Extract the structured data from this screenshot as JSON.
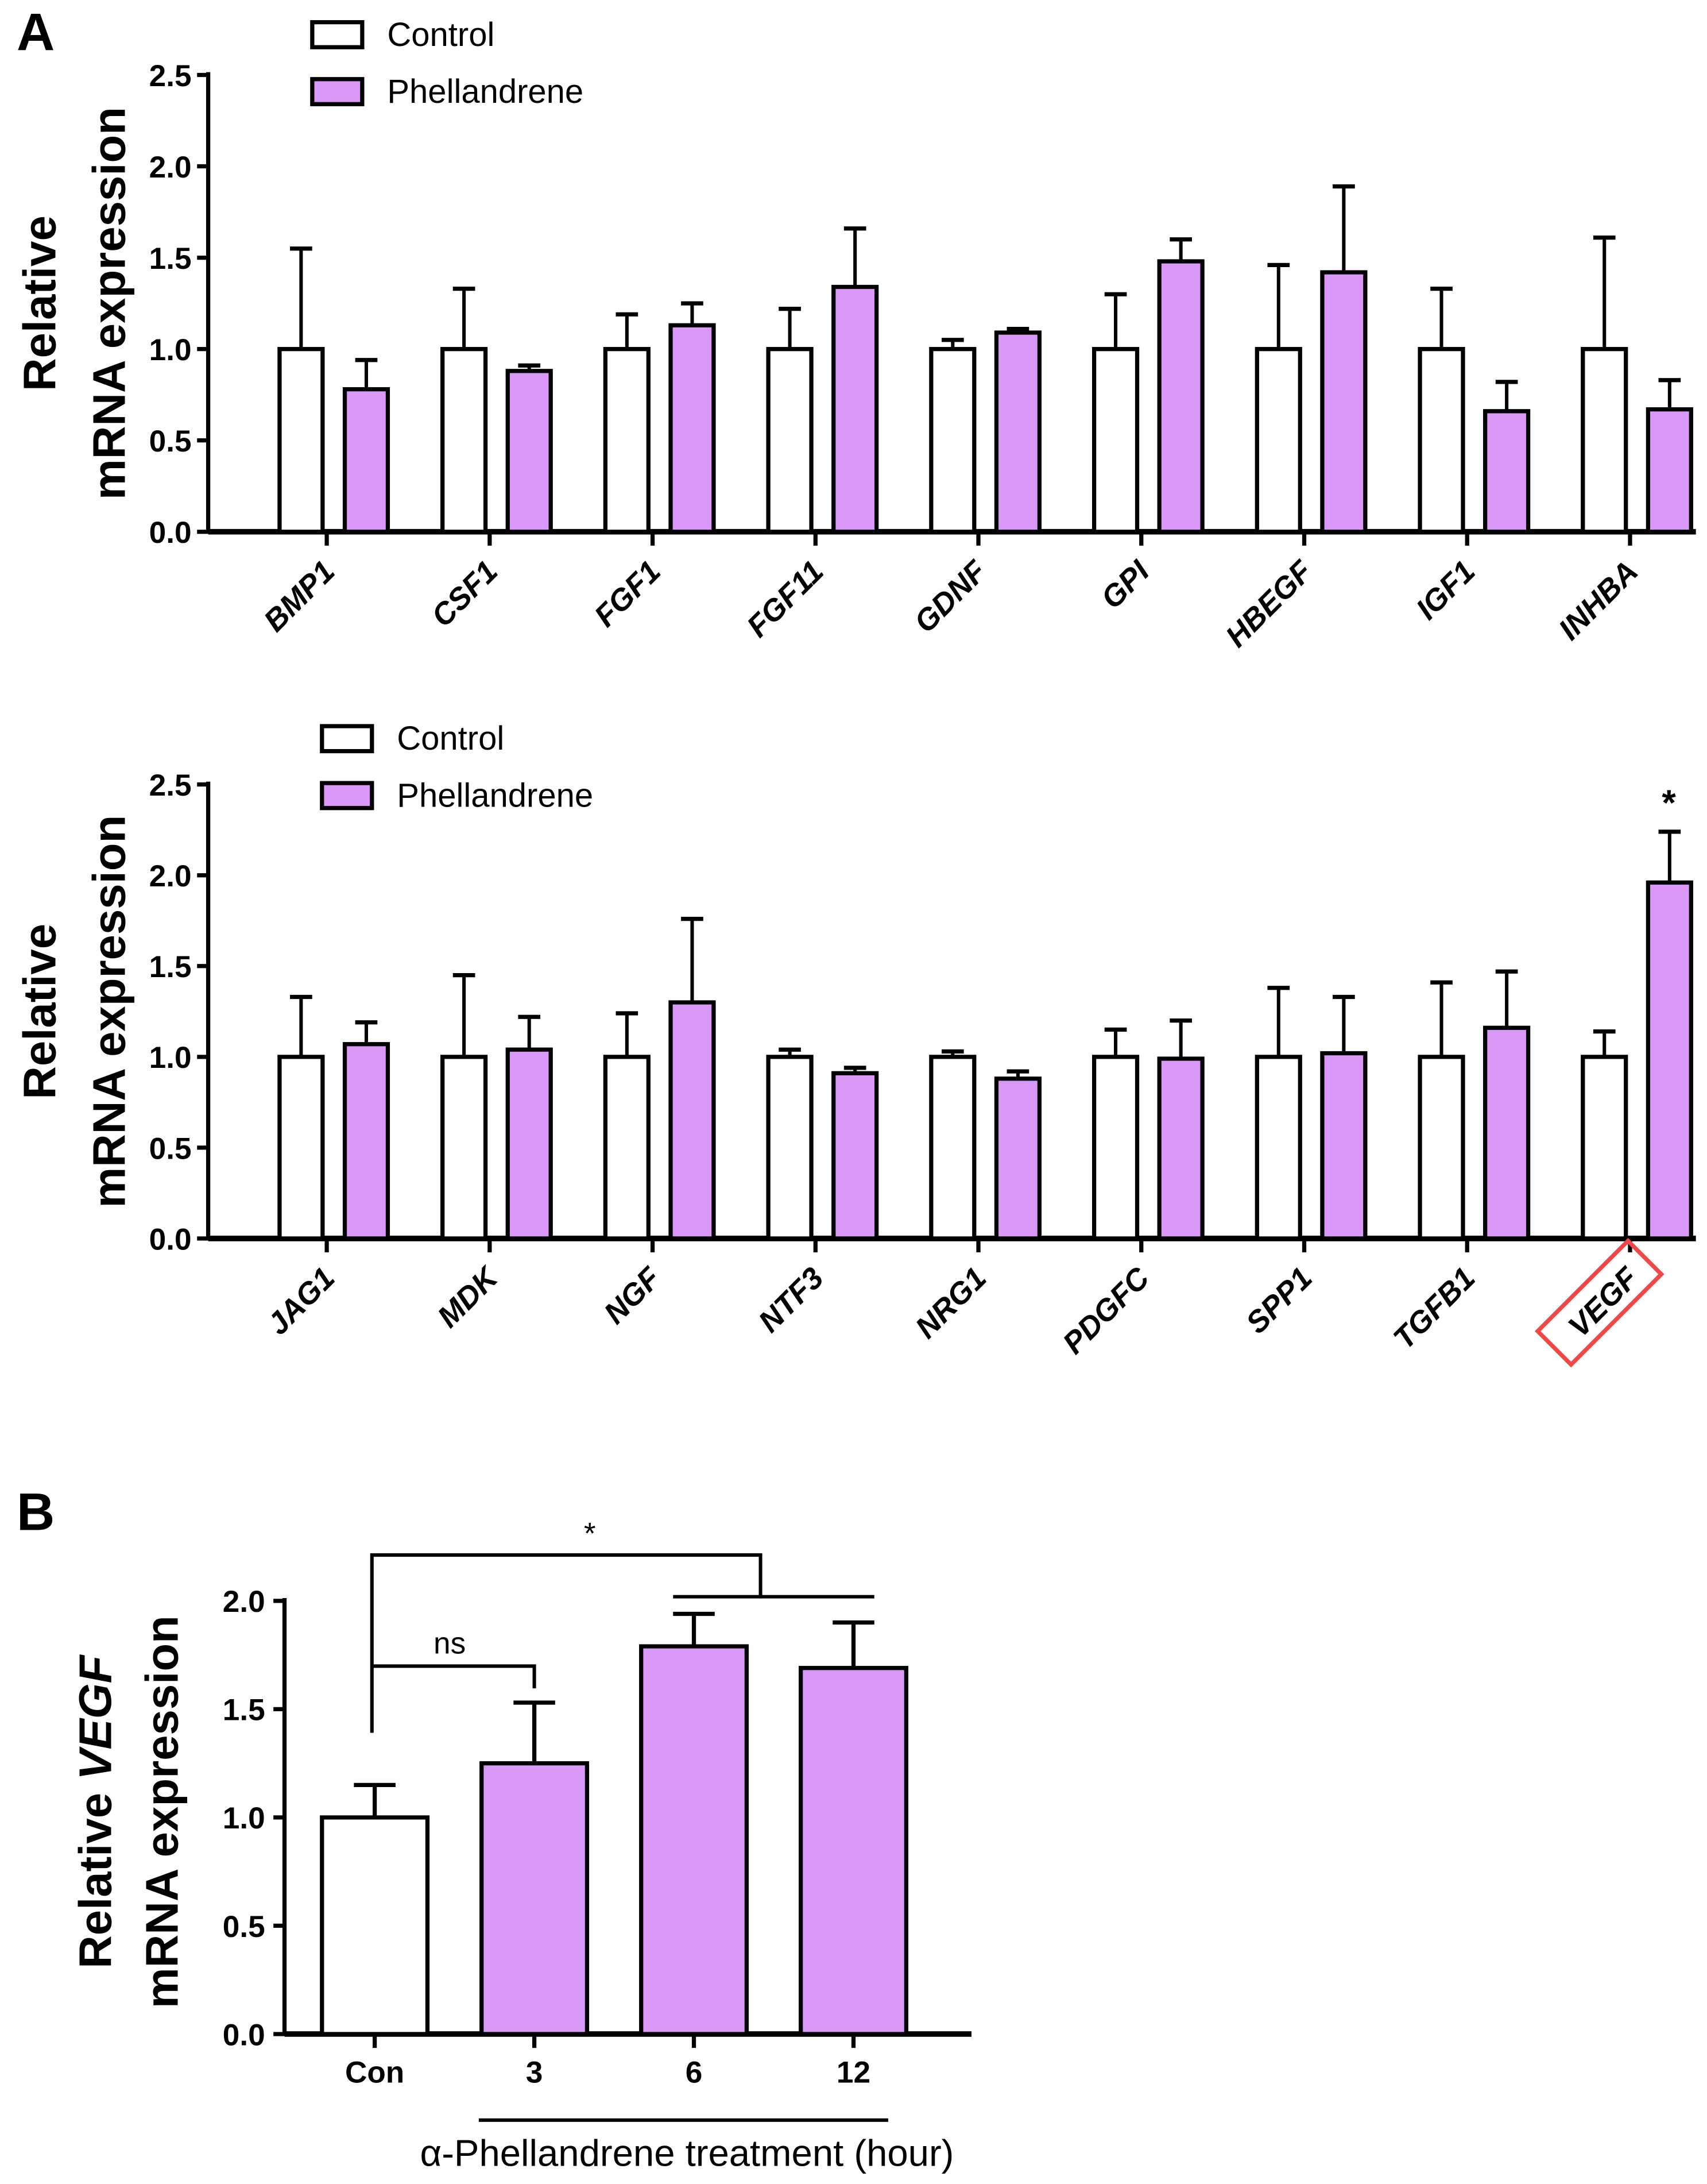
{
  "colors": {
    "control": "#ffffff",
    "treatment": "#da98f8",
    "highlight": "#f04848",
    "axis": "#000000"
  },
  "chart_data": [
    {
      "type": "bar",
      "panel_label": "A",
      "ylabel_lines": [
        "Relative",
        "mRNA expression"
      ],
      "ylim": [
        0,
        2.5
      ],
      "yticks": [
        "0.0",
        "0.5",
        "1.0",
        "1.5",
        "2.0",
        "2.5"
      ],
      "legend": [
        "Control",
        "Phellandrene"
      ],
      "legend_position": "top-left",
      "categories": [
        "BMP1",
        "CSF1",
        "FGF1",
        "FGF11",
        "GDNF",
        "GPI",
        "HBEGF",
        "IGF1",
        "INHBA"
      ],
      "series": [
        {
          "name": "Control",
          "values": [
            1,
            1,
            1,
            1,
            1,
            1,
            1,
            1,
            1
          ],
          "error_top": [
            1.55,
            1.33,
            1.19,
            1.22,
            1.05,
            1.3,
            1.46,
            1.33,
            1.61
          ]
        },
        {
          "name": "Phellandrene",
          "values": [
            0.78,
            0.88,
            1.13,
            1.34,
            1.09,
            1.48,
            1.42,
            0.66,
            0.67
          ],
          "error_top": [
            0.94,
            0.91,
            1.25,
            1.66,
            1.11,
            1.6,
            1.89,
            0.82,
            0.83
          ]
        }
      ]
    },
    {
      "type": "bar",
      "ylabel_lines": [
        "Relative",
        "mRNA expression"
      ],
      "ylim": [
        0,
        2.5
      ],
      "yticks": [
        "0.0",
        "0.5",
        "1.0",
        "1.5",
        "2.0",
        "2.5"
      ],
      "legend": [
        "Control",
        "Phellandrene"
      ],
      "legend_position": "top-left",
      "categories": [
        "JAG1",
        "MDK",
        "NGF",
        "NTF3",
        "NRG1",
        "PDGFC",
        "SPP1",
        "TGFB1",
        "VEGF"
      ],
      "highlighted_category": "VEGF",
      "annotations": [
        {
          "category": "VEGF",
          "text": "*"
        }
      ],
      "series": [
        {
          "name": "Control",
          "values": [
            1,
            1,
            1,
            1,
            1,
            1,
            1,
            1,
            1
          ],
          "error_top": [
            1.33,
            1.45,
            1.24,
            1.04,
            1.03,
            1.15,
            1.38,
            1.41,
            1.14
          ]
        },
        {
          "name": "Phellandrene",
          "values": [
            1.07,
            1.04,
            1.3,
            0.91,
            0.88,
            0.99,
            1.02,
            1.16,
            1.96
          ],
          "error_top": [
            1.19,
            1.22,
            1.76,
            0.94,
            0.92,
            1.2,
            1.33,
            1.47,
            2.24
          ]
        }
      ]
    },
    {
      "type": "bar",
      "panel_label": "B",
      "ylabel_lines": [
        "Relative VEGF",
        "mRNA expression"
      ],
      "ylabel_prefix": "Relative ",
      "ylabel_italic": "VEGF",
      "ylim": [
        0,
        2.0
      ],
      "yticks": [
        "0.0",
        "0.5",
        "1.0",
        "1.5",
        "2.0"
      ],
      "categories": [
        "Con",
        "3",
        "6",
        "12"
      ],
      "values": [
        1.0,
        1.25,
        1.79,
        1.69
      ],
      "error_top": [
        1.15,
        1.53,
        1.94,
        1.9
      ],
      "xlabel": "α-Phellandrene treatment (hour)",
      "annotations": [
        {
          "text": "*",
          "between": [
            "Con",
            "6 & 12"
          ]
        },
        {
          "text": "ns",
          "between": [
            "Con",
            "3"
          ]
        }
      ]
    }
  ]
}
